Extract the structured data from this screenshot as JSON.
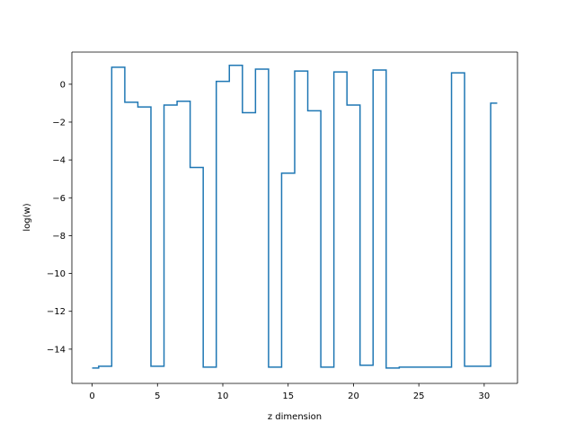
{
  "chart_data": {
    "type": "line",
    "style": "step-mid",
    "title": "",
    "xlabel": "z dimension",
    "ylabel": "log(w)",
    "xlim": [
      -1.55,
      32.55
    ],
    "ylim": [
      -15.81,
      1.7
    ],
    "xticks": [
      0,
      5,
      10,
      15,
      20,
      25,
      30
    ],
    "xtick_labels": [
      "0",
      "5",
      "10",
      "15",
      "20",
      "25",
      "30"
    ],
    "yticks": [
      0,
      -2,
      -4,
      -6,
      -8,
      -10,
      -12,
      -14
    ],
    "ytick_labels": [
      "0",
      "−2",
      "−4",
      "−6",
      "−8",
      "−10",
      "−12",
      "−14"
    ],
    "grid": false,
    "legend": "none",
    "series": [
      {
        "color": "#1f77b4",
        "x": [
          0,
          1,
          2,
          3,
          4,
          5,
          6,
          7,
          8,
          9,
          10,
          11,
          12,
          13,
          14,
          15,
          16,
          17,
          18,
          19,
          20,
          21,
          22,
          23,
          24,
          25,
          26,
          27,
          28,
          29,
          30,
          31
        ],
        "y": [
          -15.0,
          -14.9,
          0.9,
          -0.95,
          -1.2,
          -14.9,
          -1.1,
          -0.9,
          -4.4,
          -14.95,
          0.15,
          1.0,
          -1.5,
          0.8,
          -14.95,
          -4.7,
          0.7,
          -1.4,
          -14.95,
          0.65,
          -1.1,
          -14.85,
          0.75,
          -15.0,
          -14.95,
          -14.95,
          -14.95,
          -14.95,
          0.6,
          -14.9,
          -14.9,
          -1.0
        ]
      }
    ]
  }
}
